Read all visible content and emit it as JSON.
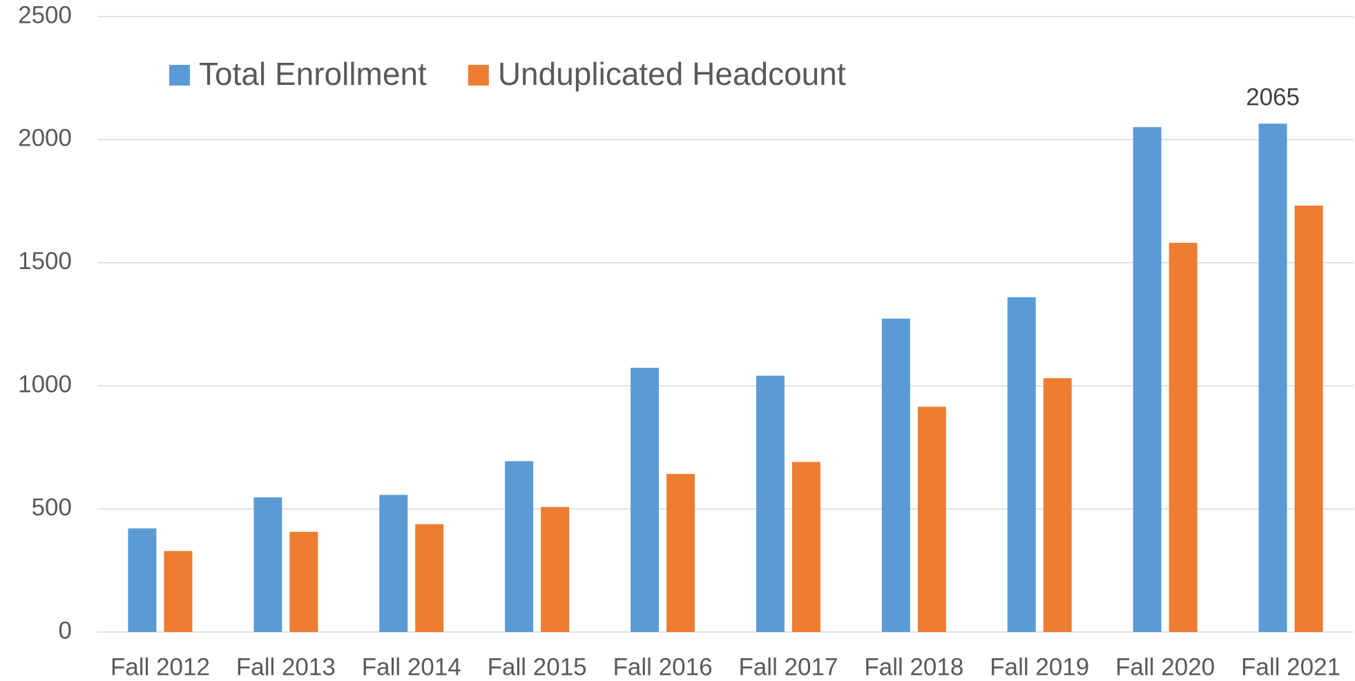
{
  "chart_data": {
    "type": "bar",
    "categories": [
      "Fall 2012",
      "Fall 2013",
      "Fall 2014",
      "Fall 2015",
      "Fall 2016",
      "Fall 2017",
      "Fall 2018",
      "Fall 2019",
      "Fall 2020",
      "Fall 2021"
    ],
    "series": [
      {
        "name": "Total Enrollment",
        "color": "#5b9bd5",
        "values": [
          421,
          547,
          557,
          694,
          1073,
          1041,
          1273,
          1360,
          2051,
          2065
        ],
        "value_labels": [
          null,
          null,
          null,
          null,
          null,
          null,
          null,
          null,
          null,
          "2065"
        ]
      },
      {
        "name": "Unduplicated Headcount",
        "color": "#ed7d31",
        "values": [
          329,
          407,
          438,
          508,
          642,
          691,
          915,
          1031,
          1581,
          1732
        ]
      }
    ],
    "ylim": [
      0,
      2500
    ],
    "yticks": [
      0,
      500,
      1000,
      1500,
      2000,
      2500
    ],
    "grid": true,
    "legend": "top-left"
  }
}
